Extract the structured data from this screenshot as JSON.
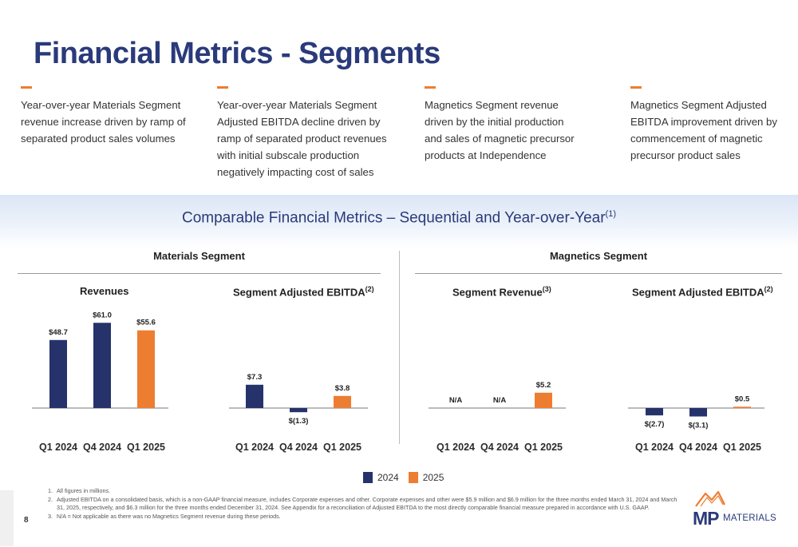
{
  "page": {
    "title": "Financial Metrics - Segments",
    "page_number": "8"
  },
  "bullets": [
    "Year-over-year Materials Segment revenue increase driven by ramp of separated product sales volumes",
    "Year-over-year Materials Segment Adjusted EBITDA decline driven by ramp of separated product revenues with initial subscale production negatively impacting cost of sales",
    "Magnetics Segment revenue driven by the initial production and sales of magnetic precursor products at Independence",
    "Magnetics Segment Adjusted EBITDA improvement driven by commencement of magnetic precursor product sales"
  ],
  "band": {
    "title": "Comparable Financial Metrics – Sequential and Year-over-Year",
    "note": "(1)"
  },
  "segments": {
    "materials": "Materials Segment",
    "magnetics": "Magnetics Segment"
  },
  "chart_titles": {
    "c1": {
      "text": "Revenues",
      "note": ""
    },
    "c2": {
      "text": "Segment Adjusted EBITDA",
      "note": "(2)"
    },
    "c3": {
      "text": "Segment Revenue",
      "note": "(3)"
    },
    "c4": {
      "text": "Segment Adjusted EBITDA",
      "note": "(2)"
    }
  },
  "legend": [
    {
      "label": "2024",
      "color": "#26336b"
    },
    {
      "label": "2025",
      "color": "#ed7d31"
    }
  ],
  "chart_data": [
    {
      "type": "bar",
      "title": "Revenues",
      "categories": [
        "Q1 2024",
        "Q4 2024",
        "Q1 2025"
      ],
      "values": [
        48.7,
        61.0,
        55.6
      ],
      "labels": [
        "$48.7",
        "$61.0",
        "$55.6"
      ],
      "colors": [
        "#26336b",
        "#26336b",
        "#ed7d31"
      ]
    },
    {
      "type": "bar",
      "title": "Segment Adjusted EBITDA",
      "categories": [
        "Q1 2024",
        "Q4 2024",
        "Q1 2025"
      ],
      "values": [
        7.3,
        -1.3,
        3.8
      ],
      "labels": [
        "$7.3",
        "$(1.3)",
        "$3.8"
      ],
      "colors": [
        "#26336b",
        "#26336b",
        "#ed7d31"
      ]
    },
    {
      "type": "bar",
      "title": "Segment Revenue",
      "categories": [
        "Q1 2024",
        "Q4 2024",
        "Q1 2025"
      ],
      "values": [
        null,
        null,
        5.2
      ],
      "labels": [
        "N/A",
        "N/A",
        "$5.2"
      ],
      "colors": [
        "#26336b",
        "#26336b",
        "#ed7d31"
      ]
    },
    {
      "type": "bar",
      "title": "Segment Adjusted EBITDA",
      "categories": [
        "Q1 2024",
        "Q4 2024",
        "Q1 2025"
      ],
      "values": [
        -2.7,
        -3.1,
        0.5
      ],
      "labels": [
        "$(2.7)",
        "$(3.1)",
        "$0.5"
      ],
      "colors": [
        "#26336b",
        "#26336b",
        "#ed7d31"
      ]
    }
  ],
  "footnotes": [
    {
      "num": "1.",
      "text": "All figures in millions."
    },
    {
      "num": "2.",
      "text": "Adjusted EBITDA on a consolidated basis, which is a non-GAAP financial measure, includes Corporate expenses and other. Corporate expenses and other were $5.9 million and $6.9 million for the three months ended March 31, 2024 and March 31, 2025, respectively, and $6.3 million for the three months ended December 31, 2024. See Appendix for a reconciliation of Adjusted EBITDA to the most directly comparable financial measure prepared in accordance with U.S. GAAP."
    },
    {
      "num": "3.",
      "text": "N/A = Not applicable as there was no Magnetics Segment revenue during these periods."
    }
  ],
  "logo": {
    "mark": "MP",
    "word": "MATERIALS",
    "colors": [
      "#ed7d31",
      "#2a3a7a"
    ]
  }
}
